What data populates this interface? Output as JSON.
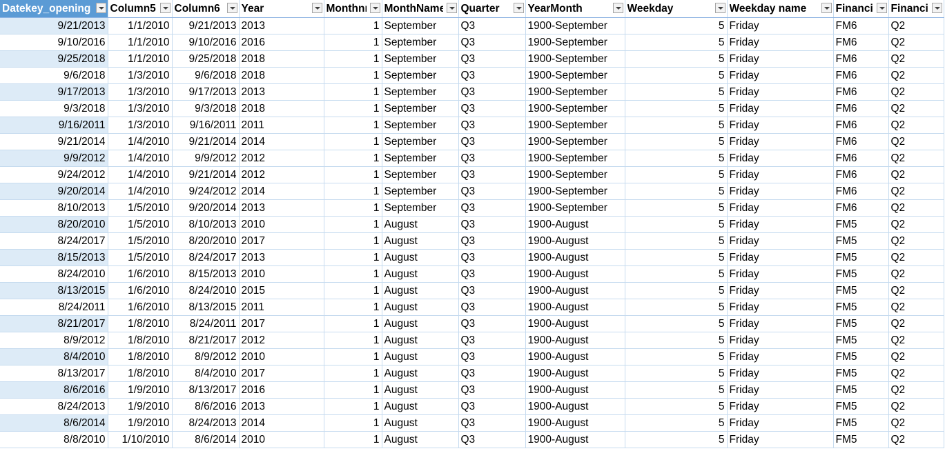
{
  "columns": [
    {
      "label": "Datekey_opening"
    },
    {
      "label": "Column5"
    },
    {
      "label": "Column6"
    },
    {
      "label": "Year"
    },
    {
      "label": "Monthnr"
    },
    {
      "label": "MonthName"
    },
    {
      "label": "Quarter"
    },
    {
      "label": "YearMonth"
    },
    {
      "label": "Weekday"
    },
    {
      "label": "Weekday name"
    },
    {
      "label": "Financial"
    },
    {
      "label": "Financial"
    }
  ],
  "rows": [
    [
      "9/21/2013",
      "1/1/2010",
      "9/21/2013",
      "2013",
      "1",
      "September",
      "Q3",
      "1900-September",
      "5",
      "Friday",
      "FM6",
      "Q2"
    ],
    [
      "9/10/2016",
      "1/1/2010",
      "9/10/2016",
      "2016",
      "1",
      "September",
      "Q3",
      "1900-September",
      "5",
      "Friday",
      "FM6",
      "Q2"
    ],
    [
      "9/25/2018",
      "1/1/2010",
      "9/25/2018",
      "2018",
      "1",
      "September",
      "Q3",
      "1900-September",
      "5",
      "Friday",
      "FM6",
      "Q2"
    ],
    [
      "9/6/2018",
      "1/3/2010",
      "9/6/2018",
      "2018",
      "1",
      "September",
      "Q3",
      "1900-September",
      "5",
      "Friday",
      "FM6",
      "Q2"
    ],
    [
      "9/17/2013",
      "1/3/2010",
      "9/17/2013",
      "2013",
      "1",
      "September",
      "Q3",
      "1900-September",
      "5",
      "Friday",
      "FM6",
      "Q2"
    ],
    [
      "9/3/2018",
      "1/3/2010",
      "9/3/2018",
      "2018",
      "1",
      "September",
      "Q3",
      "1900-September",
      "5",
      "Friday",
      "FM6",
      "Q2"
    ],
    [
      "9/16/2011",
      "1/3/2010",
      "9/16/2011",
      "2011",
      "1",
      "September",
      "Q3",
      "1900-September",
      "5",
      "Friday",
      "FM6",
      "Q2"
    ],
    [
      "9/21/2014",
      "1/4/2010",
      "9/21/2014",
      "2014",
      "1",
      "September",
      "Q3",
      "1900-September",
      "5",
      "Friday",
      "FM6",
      "Q2"
    ],
    [
      "9/9/2012",
      "1/4/2010",
      "9/9/2012",
      "2012",
      "1",
      "September",
      "Q3",
      "1900-September",
      "5",
      "Friday",
      "FM6",
      "Q2"
    ],
    [
      "9/24/2012",
      "1/4/2010",
      "9/21/2014",
      "2012",
      "1",
      "September",
      "Q3",
      "1900-September",
      "5",
      "Friday",
      "FM6",
      "Q2"
    ],
    [
      "9/20/2014",
      "1/4/2010",
      "9/24/2012",
      "2014",
      "1",
      "September",
      "Q3",
      "1900-September",
      "5",
      "Friday",
      "FM6",
      "Q2"
    ],
    [
      "8/10/2013",
      "1/5/2010",
      "9/20/2014",
      "2013",
      "1",
      "September",
      "Q3",
      "1900-September",
      "5",
      "Friday",
      "FM6",
      "Q2"
    ],
    [
      "8/20/2010",
      "1/5/2010",
      "8/10/2013",
      "2010",
      "1",
      "August",
      "Q3",
      "1900-August",
      "5",
      "Friday",
      "FM5",
      "Q2"
    ],
    [
      "8/24/2017",
      "1/5/2010",
      "8/20/2010",
      "2017",
      "1",
      "August",
      "Q3",
      "1900-August",
      "5",
      "Friday",
      "FM5",
      "Q2"
    ],
    [
      "8/15/2013",
      "1/5/2010",
      "8/24/2017",
      "2013",
      "1",
      "August",
      "Q3",
      "1900-August",
      "5",
      "Friday",
      "FM5",
      "Q2"
    ],
    [
      "8/24/2010",
      "1/6/2010",
      "8/15/2013",
      "2010",
      "1",
      "August",
      "Q3",
      "1900-August",
      "5",
      "Friday",
      "FM5",
      "Q2"
    ],
    [
      "8/13/2015",
      "1/6/2010",
      "8/24/2010",
      "2015",
      "1",
      "August",
      "Q3",
      "1900-August",
      "5",
      "Friday",
      "FM5",
      "Q2"
    ],
    [
      "8/24/2011",
      "1/6/2010",
      "8/13/2015",
      "2011",
      "1",
      "August",
      "Q3",
      "1900-August",
      "5",
      "Friday",
      "FM5",
      "Q2"
    ],
    [
      "8/21/2017",
      "1/8/2010",
      "8/24/2011",
      "2017",
      "1",
      "August",
      "Q3",
      "1900-August",
      "5",
      "Friday",
      "FM5",
      "Q2"
    ],
    [
      "8/9/2012",
      "1/8/2010",
      "8/21/2017",
      "2012",
      "1",
      "August",
      "Q3",
      "1900-August",
      "5",
      "Friday",
      "FM5",
      "Q2"
    ],
    [
      "8/4/2010",
      "1/8/2010",
      "8/9/2012",
      "2010",
      "1",
      "August",
      "Q3",
      "1900-August",
      "5",
      "Friday",
      "FM5",
      "Q2"
    ],
    [
      "8/13/2017",
      "1/8/2010",
      "8/4/2010",
      "2017",
      "1",
      "August",
      "Q3",
      "1900-August",
      "5",
      "Friday",
      "FM5",
      "Q2"
    ],
    [
      "8/6/2016",
      "1/9/2010",
      "8/13/2017",
      "2016",
      "1",
      "August",
      "Q3",
      "1900-August",
      "5",
      "Friday",
      "FM5",
      "Q2"
    ],
    [
      "8/24/2013",
      "1/9/2010",
      "8/6/2016",
      "2013",
      "1",
      "August",
      "Q3",
      "1900-August",
      "5",
      "Friday",
      "FM5",
      "Q2"
    ],
    [
      "8/6/2014",
      "1/9/2010",
      "8/24/2013",
      "2014",
      "1",
      "August",
      "Q3",
      "1900-August",
      "5",
      "Friday",
      "FM5",
      "Q2"
    ],
    [
      "8/8/2010",
      "1/10/2010",
      "8/6/2014",
      "2010",
      "1",
      "August",
      "Q3",
      "1900-August",
      "5",
      "Friday",
      "FM5",
      "Q2"
    ]
  ],
  "colors": {
    "header_accent": "#5b9bd5",
    "first_col_band": "#ddebf7",
    "gridline": "#c6dbef"
  },
  "icons": {
    "filter": "filter-dropdown-icon"
  }
}
